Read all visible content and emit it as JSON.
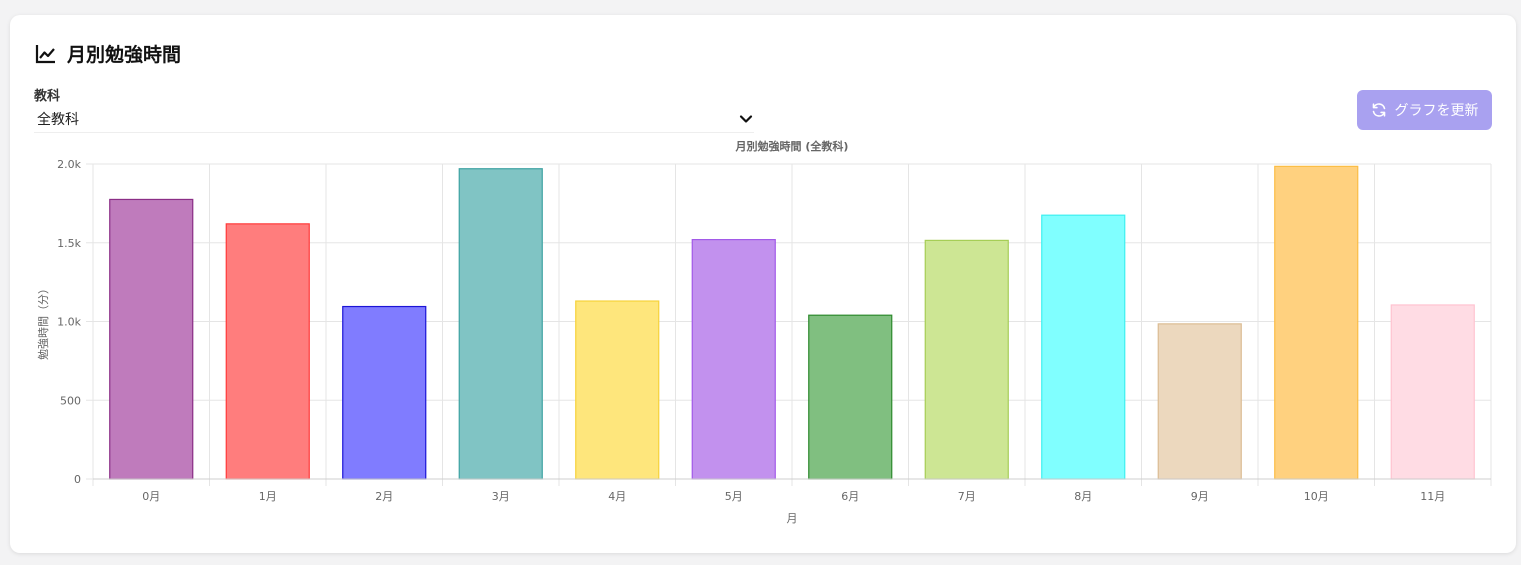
{
  "card": {
    "title": "月別勉強時間",
    "title_icon": "line-chart-icon"
  },
  "filter": {
    "label": "教科",
    "selected": "全教科",
    "chevron_icon": "chevron-down-icon"
  },
  "refresh_button": {
    "label": "グラフを更新",
    "icon": "refresh-icon",
    "bg_color": "#a9a1f0"
  },
  "chart_data": {
    "type": "bar",
    "title": "月別勉強時間 (全教科)",
    "xlabel": "月",
    "ylabel": "勉強時間（分）",
    "categories": [
      "0月",
      "1月",
      "2月",
      "3月",
      "4月",
      "5月",
      "6月",
      "7月",
      "8月",
      "9月",
      "10月",
      "11月"
    ],
    "values": [
      1775,
      1620,
      1095,
      1970,
      1130,
      1520,
      1040,
      1515,
      1675,
      985,
      1985,
      1105
    ],
    "ylim": [
      0,
      2000
    ],
    "yticks": [
      0,
      500,
      1000,
      1500,
      2000
    ],
    "ytick_labels": [
      "0",
      "500",
      "1.0k",
      "1.5k",
      "2.0k"
    ],
    "grid": true,
    "colors": [
      {
        "fill": "#bf7bbc",
        "stroke": "#8b2e86"
      },
      {
        "fill": "#ff7d7d",
        "stroke": "#ff3a3a"
      },
      {
        "fill": "#807cff",
        "stroke": "#1c14d6"
      },
      {
        "fill": "#80c4c4",
        "stroke": "#3ea3a3"
      },
      {
        "fill": "#fee67c",
        "stroke": "#f6d23a"
      },
      {
        "fill": "#c291ee",
        "stroke": "#a25ae8"
      },
      {
        "fill": "#80bf80",
        "stroke": "#2e8a2e"
      },
      {
        "fill": "#cde694",
        "stroke": "#a6cd56"
      },
      {
        "fill": "#80ffff",
        "stroke": "#3ef0f0"
      },
      {
        "fill": "#ecd8be",
        "stroke": "#dcbc93"
      },
      {
        "fill": "#ffd17f",
        "stroke": "#fbbd45"
      },
      {
        "fill": "#ffdce4",
        "stroke": "#ffc3d0"
      }
    ]
  }
}
